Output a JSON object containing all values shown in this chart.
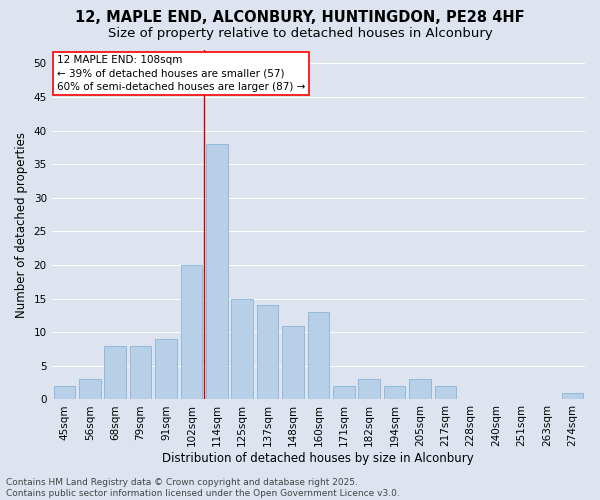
{
  "title_line1": "12, MAPLE END, ALCONBURY, HUNTINGDON, PE28 4HF",
  "title_line2": "Size of property relative to detached houses in Alconbury",
  "xlabel": "Distribution of detached houses by size in Alconbury",
  "ylabel": "Number of detached properties",
  "categories": [
    "45sqm",
    "56sqm",
    "68sqm",
    "79sqm",
    "91sqm",
    "102sqm",
    "114sqm",
    "125sqm",
    "137sqm",
    "148sqm",
    "160sqm",
    "171sqm",
    "182sqm",
    "194sqm",
    "205sqm",
    "217sqm",
    "228sqm",
    "240sqm",
    "251sqm",
    "263sqm",
    "274sqm"
  ],
  "values": [
    2,
    3,
    8,
    8,
    9,
    20,
    38,
    15,
    14,
    11,
    13,
    2,
    3,
    2,
    3,
    2,
    0,
    0,
    0,
    0,
    1
  ],
  "bar_color": "#b8cfe8",
  "bar_edge_color": "#7aadd4",
  "vline_color": "#cc0000",
  "ylim": [
    0,
    52
  ],
  "yticks": [
    0,
    5,
    10,
    15,
    20,
    25,
    30,
    35,
    40,
    45,
    50
  ],
  "background_color": "#dde4f0",
  "grid_color": "#ffffff",
  "annotation_text": "12 MAPLE END: 108sqm\n← 39% of detached houses are smaller (57)\n60% of semi-detached houses are larger (87) →",
  "footer_text": "Contains HM Land Registry data © Crown copyright and database right 2025.\nContains public sector information licensed under the Open Government Licence v3.0.",
  "title_fontsize": 10.5,
  "subtitle_fontsize": 9.5,
  "axis_label_fontsize": 8.5,
  "tick_fontsize": 7.5,
  "annotation_fontsize": 7.5,
  "footer_fontsize": 6.5
}
